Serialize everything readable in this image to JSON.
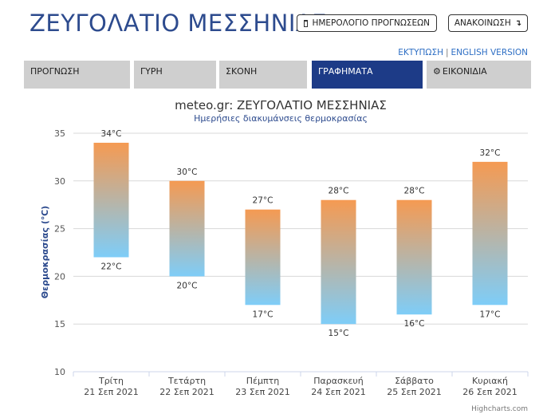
{
  "header": {
    "title": "ΖΕΥΓΟΛΑΤΙΟ ΜΕΣΣΗΝΙΑΣ",
    "calendar_button": "ΗΜΕΡΟΛΟΓΙΟ ΠΡΟΓΝΩΣΕΩΝ",
    "calendar_icon": "calendar-icon",
    "announce_button": "ΑΝΑΚΟΙΝΩΣΗ",
    "announce_icon": "turn-down-arrow-icon"
  },
  "links": {
    "print": "ΕΚΤΥΠΩΣΗ",
    "separator": "|",
    "english": "ENGLISH VERSION"
  },
  "tabs": [
    {
      "label": "ΠΡΟΓΝΩΣΗ",
      "active": false
    },
    {
      "label": "ΓΥΡΗ",
      "active": false
    },
    {
      "label": "ΣΚΟΝΗ",
      "active": false
    },
    {
      "label": "ΓΡΑΦΗΜΑΤΑ",
      "active": true
    },
    {
      "label": "ΕΙΚΟΝΙΔΙΑ",
      "active": false,
      "icon": "gear-icon"
    }
  ],
  "colors": {
    "accent": "#1d3b87",
    "title": "#2d4b8e",
    "bar_top": "#f59a52",
    "bar_bottom": "#7ecdf8",
    "grid": "#d8d8d8"
  },
  "chart_data": {
    "type": "columnrange",
    "title": "meteo.gr: ΖΕΥΓΟΛΑΤΙΟ ΜΕΣΣΗΝΙΑΣ",
    "subtitle": "Ημερήσιες διακυμάνσεις θερμοκρασίας",
    "ylabel": "Θερμοκρασίας (℃)",
    "ylim": [
      10,
      35
    ],
    "yticks": [
      10,
      15,
      20,
      25,
      30,
      35
    ],
    "grid": true,
    "unit": "°C",
    "categories": [
      {
        "day": "Τρίτη",
        "date": "21 Σεπ 2021"
      },
      {
        "day": "Τετάρτη",
        "date": "22 Σεπ 2021"
      },
      {
        "day": "Πέμπτη",
        "date": "23 Σεπ 2021"
      },
      {
        "day": "Παρασκευή",
        "date": "24 Σεπ 2021"
      },
      {
        "day": "Σάββατο",
        "date": "25 Σεπ 2021"
      },
      {
        "day": "Κυριακή",
        "date": "26 Σεπ 2021"
      }
    ],
    "low": [
      22,
      20,
      17,
      15,
      16,
      17
    ],
    "high": [
      34,
      30,
      27,
      28,
      28,
      32
    ]
  },
  "credit": "Highcharts.com"
}
